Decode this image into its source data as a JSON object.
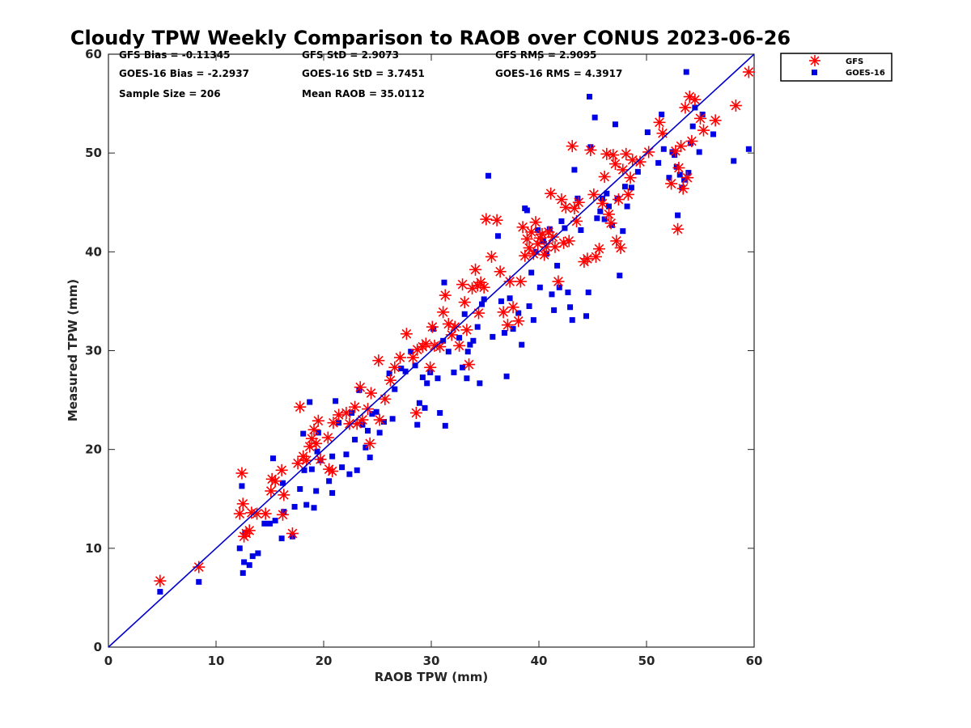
{
  "chart_data": {
    "type": "scatter",
    "title": "Cloudy TPW Weekly Comparison to RAOB over CONUS 2023-06-26",
    "xlabel": "RAOB TPW (mm)",
    "ylabel": "Measured TPW (mm)",
    "xlim": [
      0,
      60
    ],
    "ylim": [
      0,
      60
    ],
    "xticks": [
      0,
      10,
      20,
      30,
      40,
      50,
      60
    ],
    "yticks": [
      0,
      10,
      20,
      30,
      40,
      50,
      60
    ],
    "grid": false,
    "legend_position": "outside-top-right",
    "stats": {
      "gfs_bias": "GFS Bias = -0.11345",
      "gfs_std": "GFS StD = 2.9073",
      "gfs_rms": "GFS RMS = 2.9095",
      "goes_bias": "GOES-16 Bias = -2.2937",
      "goes_std": "GOES-16 StD = 3.7451",
      "goes_rms": "GOES-16 RMS = 4.3917",
      "sample_size": "Sample Size = 206",
      "mean_raob": "Mean RAOB = 35.0112"
    },
    "reference_line": {
      "from": [
        0,
        0
      ],
      "to": [
        60,
        60
      ],
      "color": "#0000cc"
    },
    "series": [
      {
        "name": "GFS",
        "marker": "asterisk",
        "color": "#ff0000",
        "points": [
          [
            4.8,
            6.7
          ],
          [
            8.4,
            8.1
          ],
          [
            12.2,
            13.5
          ],
          [
            12.4,
            17.6
          ],
          [
            12.5,
            14.5
          ],
          [
            12.6,
            11.2
          ],
          [
            12.8,
            11.5
          ],
          [
            13.1,
            11.8
          ],
          [
            13.3,
            13.6
          ],
          [
            13.8,
            13.5
          ],
          [
            14.6,
            13.5
          ],
          [
            15.1,
            15.8
          ],
          [
            15.2,
            17.0
          ],
          [
            15.5,
            16.8
          ],
          [
            16.1,
            17.9
          ],
          [
            16.3,
            15.4
          ],
          [
            16.2,
            13.4
          ],
          [
            17.1,
            11.5
          ],
          [
            17.6,
            18.6
          ],
          [
            17.8,
            24.3
          ],
          [
            18.1,
            19.3
          ],
          [
            18.4,
            18.9
          ],
          [
            18.7,
            20.3
          ],
          [
            18.9,
            21.1
          ],
          [
            19.1,
            22.0
          ],
          [
            19.3,
            20.6
          ],
          [
            19.5,
            22.9
          ],
          [
            19.7,
            19.0
          ],
          [
            20.4,
            21.2
          ],
          [
            20.5,
            18.0
          ],
          [
            20.8,
            17.8
          ],
          [
            20.9,
            22.7
          ],
          [
            21.4,
            23.5
          ],
          [
            22.1,
            23.7
          ],
          [
            22.4,
            22.6
          ],
          [
            22.9,
            24.3
          ],
          [
            23.1,
            22.6
          ],
          [
            23.4,
            26.3
          ],
          [
            23.6,
            23.0
          ],
          [
            24.1,
            24.1
          ],
          [
            24.3,
            20.6
          ],
          [
            24.4,
            25.7
          ],
          [
            25.1,
            29.0
          ],
          [
            25.2,
            23.0
          ],
          [
            25.7,
            25.1
          ],
          [
            26.2,
            27.0
          ],
          [
            26.6,
            28.3
          ],
          [
            27.1,
            29.3
          ],
          [
            27.7,
            31.7
          ],
          [
            28.3,
            29.3
          ],
          [
            28.6,
            23.7
          ],
          [
            28.7,
            30.1
          ],
          [
            29.2,
            30.4
          ],
          [
            29.5,
            30.7
          ],
          [
            29.9,
            28.3
          ],
          [
            30.1,
            32.4
          ],
          [
            30.3,
            30.5
          ],
          [
            30.8,
            30.4
          ],
          [
            31.1,
            33.9
          ],
          [
            31.3,
            35.6
          ],
          [
            31.6,
            32.7
          ],
          [
            31.9,
            31.6
          ],
          [
            32.2,
            32.4
          ],
          [
            32.6,
            30.5
          ],
          [
            32.9,
            36.7
          ],
          [
            33.1,
            34.9
          ],
          [
            33.3,
            32.1
          ],
          [
            33.5,
            28.6
          ],
          [
            33.8,
            36.3
          ],
          [
            34.1,
            38.2
          ],
          [
            34.3,
            36.6
          ],
          [
            34.4,
            33.8
          ],
          [
            34.6,
            36.9
          ],
          [
            34.9,
            36.4
          ],
          [
            35.1,
            43.3
          ],
          [
            35.6,
            39.5
          ],
          [
            36.1,
            43.2
          ],
          [
            36.4,
            38.0
          ],
          [
            36.7,
            33.9
          ],
          [
            37.1,
            32.6
          ],
          [
            37.3,
            37.0
          ],
          [
            37.6,
            34.4
          ],
          [
            38.1,
            33.0
          ],
          [
            38.3,
            37.0
          ],
          [
            38.5,
            42.5
          ],
          [
            38.7,
            39.6
          ],
          [
            38.9,
            41.3
          ],
          [
            39.1,
            40.4
          ],
          [
            39.3,
            42.0
          ],
          [
            39.5,
            39.8
          ],
          [
            39.7,
            43.0
          ],
          [
            39.9,
            40.8
          ],
          [
            40.1,
            41.4
          ],
          [
            40.3,
            41.8
          ],
          [
            40.5,
            39.7
          ],
          [
            40.7,
            40.5
          ],
          [
            40.9,
            42.0
          ],
          [
            41.1,
            45.9
          ],
          [
            41.3,
            41.5
          ],
          [
            41.5,
            40.5
          ],
          [
            41.8,
            37.0
          ],
          [
            42.1,
            45.3
          ],
          [
            42.3,
            40.9
          ],
          [
            42.5,
            44.5
          ],
          [
            42.8,
            41.1
          ],
          [
            43.1,
            50.7
          ],
          [
            43.3,
            44.4
          ],
          [
            43.5,
            43.1
          ],
          [
            43.7,
            45.0
          ],
          [
            44.2,
            39.0
          ],
          [
            44.5,
            39.3
          ],
          [
            44.8,
            50.3
          ],
          [
            45.1,
            45.8
          ],
          [
            45.3,
            39.5
          ],
          [
            45.6,
            40.3
          ],
          [
            45.9,
            44.9
          ],
          [
            46.1,
            47.6
          ],
          [
            46.3,
            49.9
          ],
          [
            46.5,
            43.8
          ],
          [
            46.7,
            42.9
          ],
          [
            46.9,
            49.8
          ],
          [
            47.1,
            48.9
          ],
          [
            47.2,
            41.1
          ],
          [
            47.4,
            45.3
          ],
          [
            47.6,
            40.4
          ],
          [
            47.8,
            48.3
          ],
          [
            48.1,
            49.9
          ],
          [
            48.3,
            45.8
          ],
          [
            48.5,
            47.5
          ],
          [
            48.7,
            49.3
          ],
          [
            49.4,
            49.1
          ],
          [
            50.2,
            50.1
          ],
          [
            51.2,
            53.1
          ],
          [
            51.5,
            52.0
          ],
          [
            52.3,
            46.9
          ],
          [
            52.7,
            50.2
          ],
          [
            52.9,
            42.3
          ],
          [
            53.0,
            48.5
          ],
          [
            53.2,
            50.7
          ],
          [
            53.4,
            46.4
          ],
          [
            53.6,
            54.6
          ],
          [
            53.8,
            47.5
          ],
          [
            54.0,
            55.7
          ],
          [
            54.2,
            51.2
          ],
          [
            54.5,
            55.4
          ],
          [
            55.0,
            53.5
          ],
          [
            55.3,
            52.3
          ],
          [
            56.4,
            53.3
          ],
          [
            58.3,
            54.8
          ],
          [
            59.5,
            58.2
          ]
        ]
      },
      {
        "name": "GOES-16",
        "marker": "square",
        "color": "#0000e6",
        "points": [
          [
            4.8,
            5.6
          ],
          [
            8.4,
            6.6
          ],
          [
            12.2,
            10.0
          ],
          [
            12.4,
            16.3
          ],
          [
            12.5,
            7.5
          ],
          [
            12.6,
            8.6
          ],
          [
            12.7,
            11.6
          ],
          [
            13.1,
            8.3
          ],
          [
            13.4,
            9.2
          ],
          [
            13.9,
            9.5
          ],
          [
            14.5,
            12.5
          ],
          [
            15.0,
            12.5
          ],
          [
            15.3,
            19.1
          ],
          [
            15.5,
            12.8
          ],
          [
            16.1,
            11.0
          ],
          [
            16.3,
            13.7
          ],
          [
            16.2,
            16.6
          ],
          [
            17.1,
            11.2
          ],
          [
            17.3,
            14.2
          ],
          [
            17.8,
            16.0
          ],
          [
            18.1,
            21.6
          ],
          [
            18.2,
            17.9
          ],
          [
            18.4,
            14.4
          ],
          [
            18.7,
            24.8
          ],
          [
            18.9,
            18.0
          ],
          [
            19.1,
            14.1
          ],
          [
            19.3,
            15.8
          ],
          [
            19.4,
            19.8
          ],
          [
            19.5,
            21.7
          ],
          [
            19.7,
            18.9
          ],
          [
            20.5,
            16.8
          ],
          [
            20.8,
            15.6
          ],
          [
            20.8,
            19.3
          ],
          [
            21.1,
            24.9
          ],
          [
            21.4,
            22.7
          ],
          [
            21.7,
            18.2
          ],
          [
            22.1,
            19.5
          ],
          [
            22.4,
            17.5
          ],
          [
            22.6,
            23.7
          ],
          [
            22.9,
            21.0
          ],
          [
            23.1,
            17.9
          ],
          [
            23.3,
            26.0
          ],
          [
            23.6,
            22.5
          ],
          [
            23.9,
            20.2
          ],
          [
            24.1,
            21.9
          ],
          [
            24.3,
            19.2
          ],
          [
            24.5,
            23.6
          ],
          [
            24.9,
            23.8
          ],
          [
            25.2,
            21.7
          ],
          [
            25.6,
            22.8
          ],
          [
            26.1,
            27.7
          ],
          [
            26.4,
            23.1
          ],
          [
            26.6,
            26.1
          ],
          [
            27.2,
            28.2
          ],
          [
            27.6,
            27.9
          ],
          [
            28.1,
            29.9
          ],
          [
            28.5,
            28.5
          ],
          [
            28.7,
            22.5
          ],
          [
            28.9,
            24.7
          ],
          [
            29.2,
            27.3
          ],
          [
            29.4,
            24.2
          ],
          [
            29.6,
            26.7
          ],
          [
            29.9,
            27.8
          ],
          [
            30.2,
            32.2
          ],
          [
            30.6,
            27.2
          ],
          [
            30.8,
            23.7
          ],
          [
            31.1,
            31.0
          ],
          [
            31.2,
            36.9
          ],
          [
            31.3,
            22.4
          ],
          [
            31.6,
            29.9
          ],
          [
            32.1,
            27.8
          ],
          [
            32.6,
            31.3
          ],
          [
            32.9,
            28.3
          ],
          [
            33.1,
            33.7
          ],
          [
            33.3,
            27.2
          ],
          [
            33.4,
            29.9
          ],
          [
            33.6,
            30.6
          ],
          [
            33.9,
            31.0
          ],
          [
            34.3,
            32.4
          ],
          [
            34.5,
            26.7
          ],
          [
            34.7,
            34.7
          ],
          [
            34.9,
            35.2
          ],
          [
            35.3,
            47.7
          ],
          [
            35.7,
            31.4
          ],
          [
            36.2,
            41.6
          ],
          [
            36.5,
            35.0
          ],
          [
            36.8,
            31.8
          ],
          [
            37.0,
            27.4
          ],
          [
            37.3,
            35.3
          ],
          [
            37.6,
            32.2
          ],
          [
            38.1,
            33.8
          ],
          [
            38.4,
            30.6
          ],
          [
            38.7,
            44.4
          ],
          [
            38.9,
            44.2
          ],
          [
            39.1,
            34.5
          ],
          [
            39.3,
            37.9
          ],
          [
            39.5,
            33.1
          ],
          [
            39.7,
            40.0
          ],
          [
            39.9,
            42.2
          ],
          [
            40.1,
            36.4
          ],
          [
            40.4,
            41.1
          ],
          [
            40.7,
            39.8
          ],
          [
            41.0,
            42.3
          ],
          [
            41.2,
            35.7
          ],
          [
            41.4,
            34.1
          ],
          [
            41.7,
            38.6
          ],
          [
            41.9,
            36.4
          ],
          [
            42.1,
            43.1
          ],
          [
            42.4,
            42.4
          ],
          [
            42.7,
            35.9
          ],
          [
            42.9,
            34.4
          ],
          [
            43.1,
            33.1
          ],
          [
            43.3,
            48.3
          ],
          [
            43.6,
            45.4
          ],
          [
            43.9,
            42.2
          ],
          [
            44.4,
            33.5
          ],
          [
            44.6,
            35.9
          ],
          [
            44.7,
            55.7
          ],
          [
            44.8,
            50.6
          ],
          [
            45.2,
            53.6
          ],
          [
            45.4,
            43.4
          ],
          [
            45.7,
            44.1
          ],
          [
            45.9,
            45.4
          ],
          [
            46.1,
            43.3
          ],
          [
            46.3,
            45.9
          ],
          [
            46.5,
            44.6
          ],
          [
            46.8,
            42.7
          ],
          [
            47.1,
            52.9
          ],
          [
            47.3,
            45.4
          ],
          [
            47.5,
            37.6
          ],
          [
            47.8,
            42.1
          ],
          [
            48.0,
            46.6
          ],
          [
            48.2,
            44.6
          ],
          [
            48.6,
            46.5
          ],
          [
            49.2,
            48.1
          ],
          [
            50.1,
            52.1
          ],
          [
            51.1,
            49.0
          ],
          [
            51.4,
            53.9
          ],
          [
            51.6,
            50.4
          ],
          [
            52.1,
            47.5
          ],
          [
            52.4,
            50.1
          ],
          [
            52.6,
            49.8
          ],
          [
            52.8,
            48.6
          ],
          [
            52.9,
            43.7
          ],
          [
            53.1,
            47.8
          ],
          [
            53.3,
            46.5
          ],
          [
            53.5,
            47.3
          ],
          [
            53.7,
            58.2
          ],
          [
            53.9,
            48.0
          ],
          [
            54.1,
            51.0
          ],
          [
            54.3,
            52.7
          ],
          [
            54.5,
            54.6
          ],
          [
            54.9,
            50.1
          ],
          [
            55.2,
            53.9
          ],
          [
            56.2,
            51.9
          ],
          [
            58.1,
            49.2
          ],
          [
            59.5,
            50.4
          ]
        ]
      }
    ]
  }
}
